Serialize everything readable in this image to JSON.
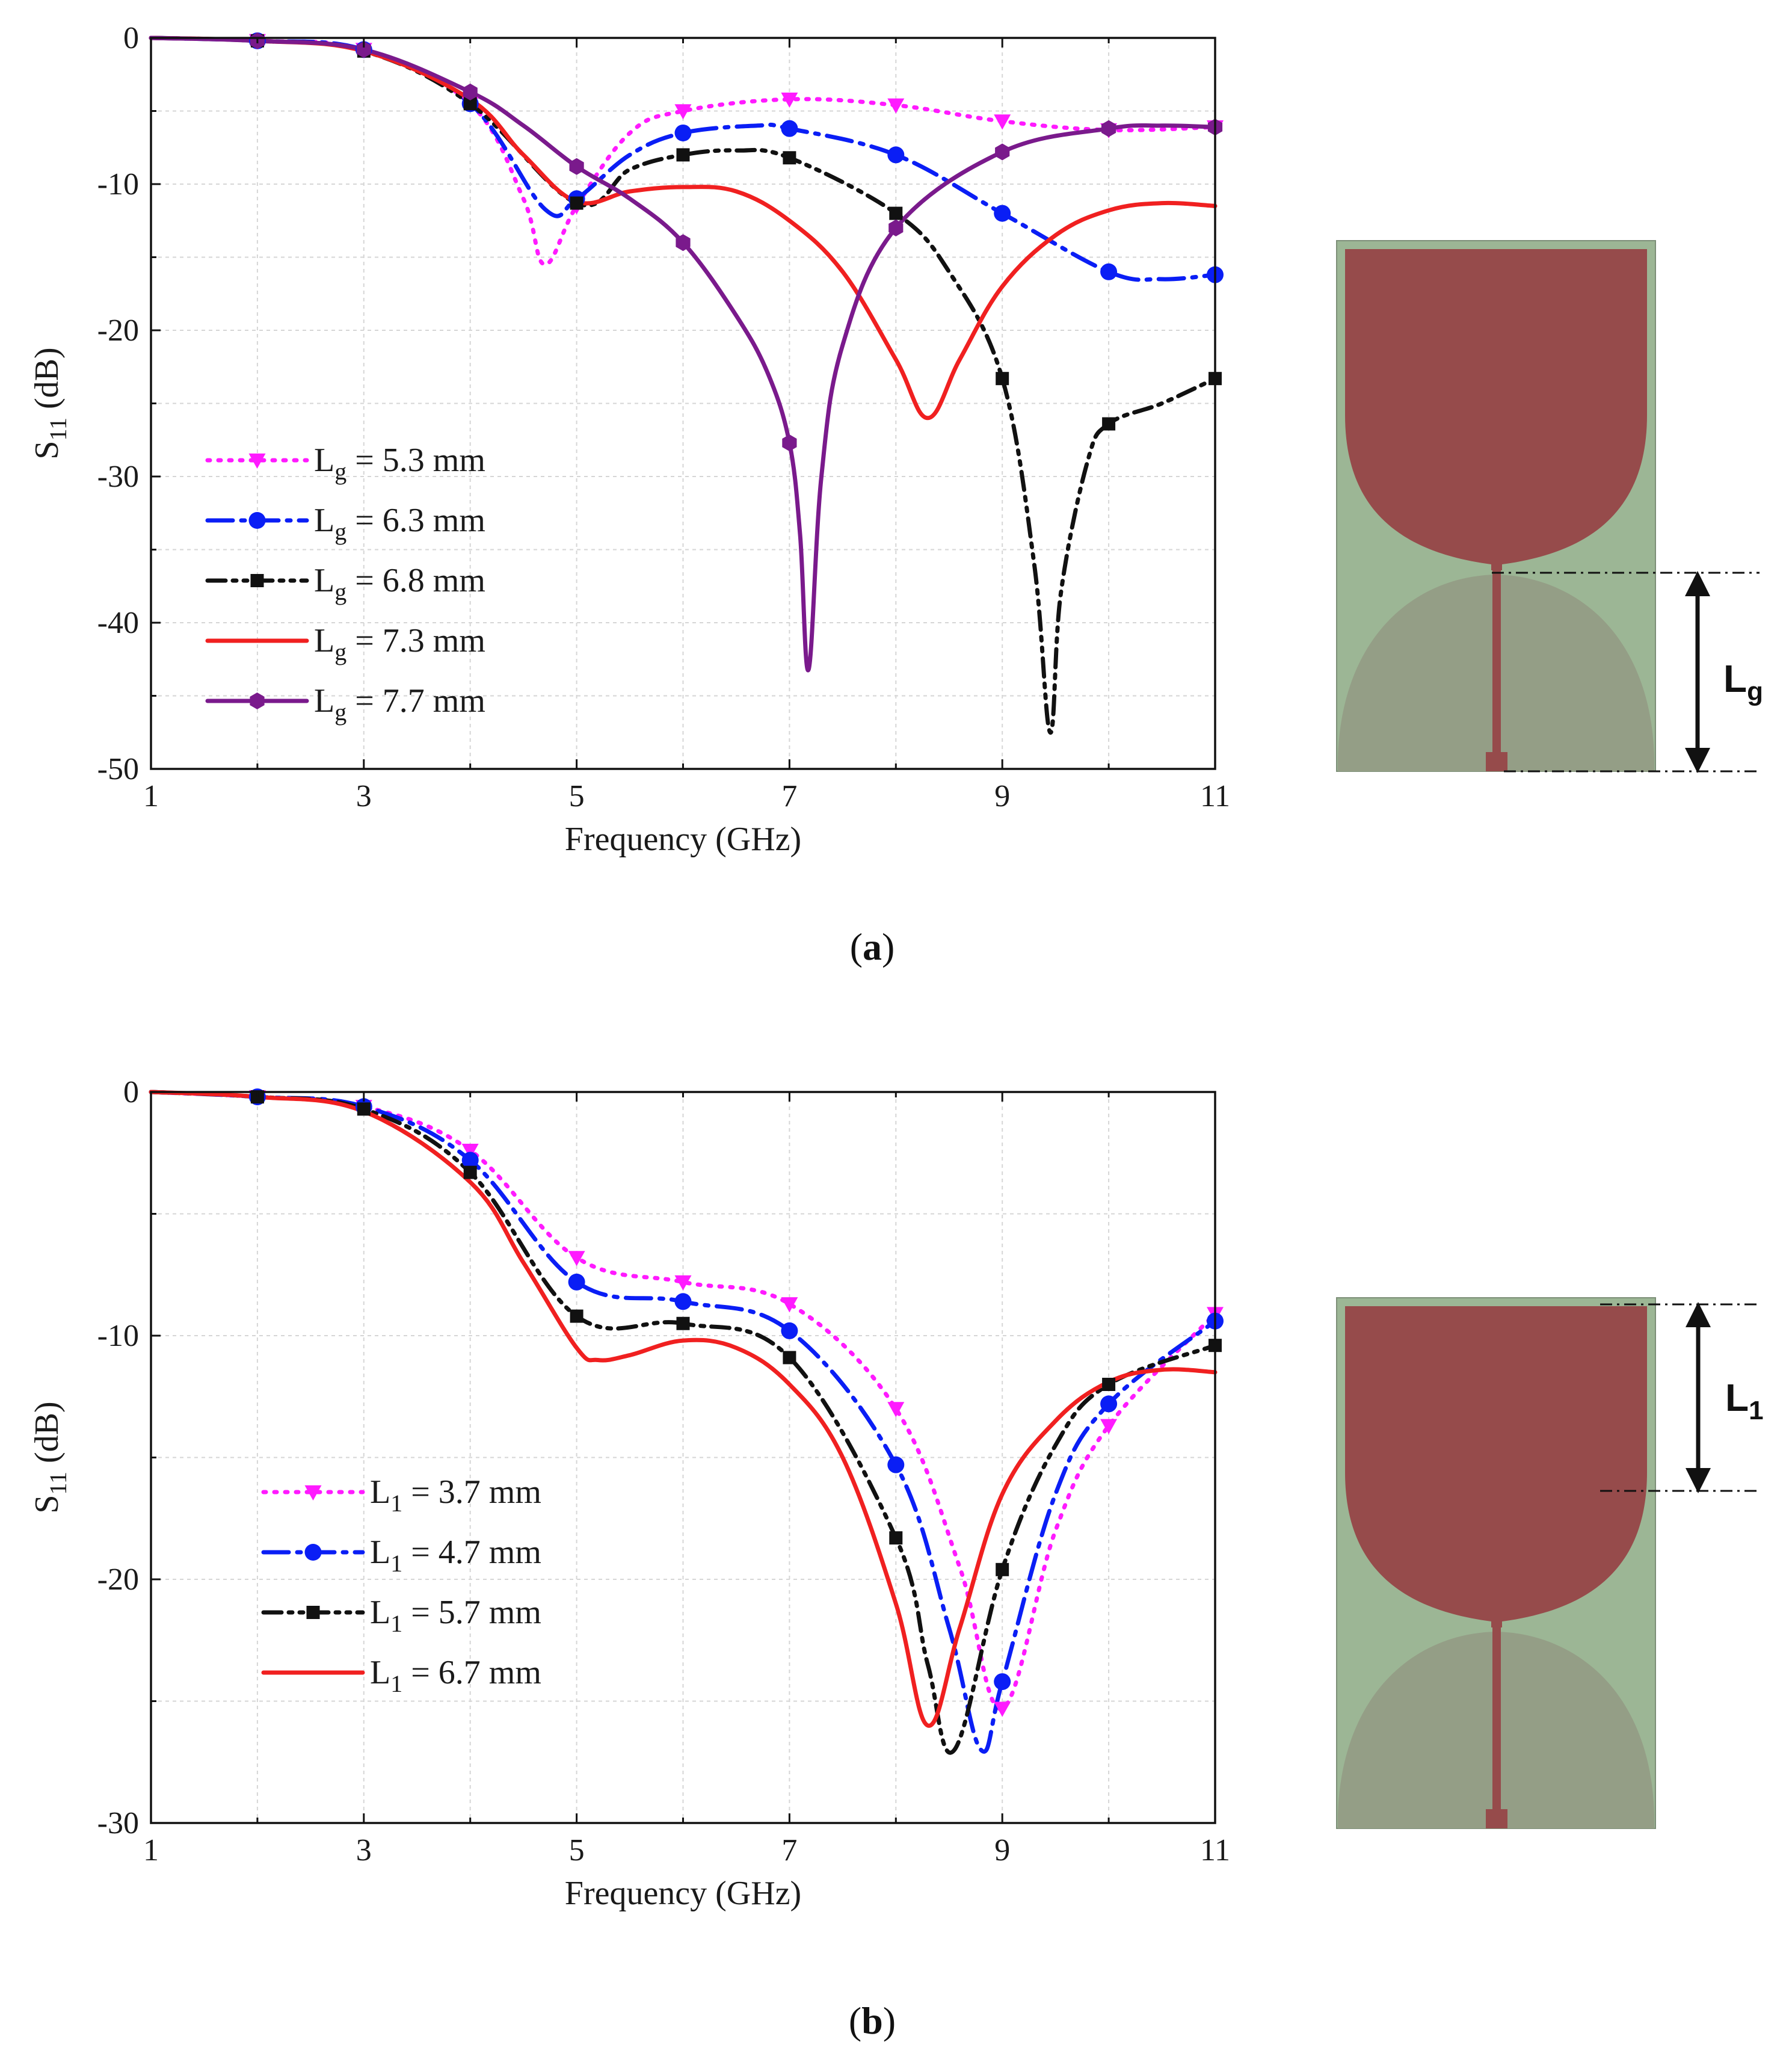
{
  "chart_data": [
    {
      "type": "line",
      "caption_label": "a",
      "xlabel": "Frequency (GHz)",
      "ylabel_main": "S",
      "ylabel_sub": "11",
      "ylabel_unit": " (dB)",
      "xlim": [
        1,
        11
      ],
      "ylim": [
        -50,
        0
      ],
      "xticks": [
        "1",
        "3",
        "5",
        "7",
        "9",
        "11"
      ],
      "yticks": [
        "0",
        "-10",
        "-20",
        "-30",
        "-40",
        "-50"
      ],
      "grid": true,
      "legend_position": "bottom-left",
      "series": [
        {
          "name_main": "L",
          "name_sub": "g",
          "name_rest": " = 5.3 mm",
          "color": "#ff1aff",
          "dash": "dot",
          "marker": "triangle-down",
          "x": [
            1,
            2,
            3,
            4,
            4.5,
            4.7,
            5,
            5.5,
            6,
            7,
            8,
            9,
            10,
            11
          ],
          "y": [
            0,
            -0.2,
            -0.8,
            -4.5,
            -11,
            -15.5,
            -11.5,
            -6.5,
            -5,
            -4.2,
            -4.6,
            -5.7,
            -6.3,
            -6.1
          ]
        },
        {
          "name_main": "L",
          "name_sub": "g",
          "name_rest": " = 6.3 mm",
          "color": "#0a1ef5",
          "dash": "dashdot",
          "marker": "circle",
          "x": [
            1,
            2,
            3,
            4,
            4.7,
            5,
            5.5,
            6,
            6.7,
            7,
            8,
            9,
            10,
            10.5,
            11
          ],
          "y": [
            0,
            -0.2,
            -0.8,
            -4.5,
            -11.7,
            -11,
            -8,
            -6.5,
            -6,
            -6.2,
            -8,
            -12,
            -16,
            -16.5,
            -16.2
          ]
        },
        {
          "name_main": "L",
          "name_sub": "g",
          "name_rest": " = 6.8 mm",
          "color": "#111111",
          "dash": "dashdotdot",
          "marker": "square",
          "x": [
            1,
            2,
            3,
            4,
            5,
            5.5,
            6,
            6.5,
            7,
            8,
            8.5,
            9,
            9.3,
            9.45,
            9.55,
            9.8,
            10,
            10.5,
            11
          ],
          "y": [
            0,
            -0.2,
            -0.9,
            -4.5,
            -11.3,
            -9,
            -8,
            -7.7,
            -8.2,
            -12,
            -16,
            -23.3,
            -36,
            -47.5,
            -38,
            -29,
            -26.4,
            -25,
            -23.3
          ]
        },
        {
          "name_main": "L",
          "name_sub": "g",
          "name_rest": " = 7.3 mm",
          "color": "#f02020",
          "dash": "solid",
          "marker": "none",
          "x": [
            1,
            2,
            3,
            4,
            4.5,
            5,
            5.5,
            6,
            6.5,
            7,
            7.5,
            8,
            8.3,
            8.6,
            9,
            9.5,
            10,
            10.5,
            11
          ],
          "y": [
            0,
            -0.2,
            -0.9,
            -4.2,
            -8,
            -11.2,
            -10.5,
            -10.2,
            -10.5,
            -12.5,
            -16,
            -22,
            -26,
            -22,
            -17,
            -13.5,
            -11.8,
            -11.3,
            -11.5
          ]
        },
        {
          "name_main": "L",
          "name_sub": "g",
          "name_rest": " = 7.7 mm",
          "color": "#7a1a8c",
          "dash": "solid",
          "marker": "hexagon",
          "x": [
            1,
            2,
            3,
            4,
            4.5,
            5,
            5.5,
            6,
            6.5,
            6.8,
            7,
            7.1,
            7.18,
            7.3,
            7.5,
            8,
            9,
            10,
            10.5,
            11
          ],
          "y": [
            0,
            -0.2,
            -0.8,
            -3.7,
            -6,
            -8.8,
            -11,
            -14,
            -19,
            -23,
            -27.7,
            -34,
            -43.2,
            -30,
            -21,
            -13,
            -7.8,
            -6.2,
            -6,
            -6.1
          ]
        }
      ]
    },
    {
      "type": "line",
      "caption_label": "b",
      "xlabel": "Frequency (GHz)",
      "ylabel_main": "S",
      "ylabel_sub": "11",
      "ylabel_unit": " (dB)",
      "xlim": [
        1,
        11
      ],
      "ylim": [
        -30,
        0
      ],
      "xticks": [
        "1",
        "3",
        "5",
        "7",
        "9",
        "11"
      ],
      "yticks": [
        "0",
        "-10",
        "-20",
        "-30"
      ],
      "grid": true,
      "legend_position": "bottom-left",
      "series": [
        {
          "name_main": "L",
          "name_sub": "1",
          "name_rest": " = 3.7 mm",
          "color": "#ff1aff",
          "dash": "dot",
          "marker": "triangle-down",
          "x": [
            1,
            2,
            3,
            4,
            5,
            6,
            7,
            8,
            8.6,
            9,
            9.5,
            10,
            11
          ],
          "y": [
            0,
            -0.2,
            -0.6,
            -2.4,
            -6.8,
            -7.8,
            -8.7,
            -13,
            -19.5,
            -25.3,
            -18,
            -13.7,
            -9.1
          ]
        },
        {
          "name_main": "L",
          "name_sub": "1",
          "name_rest": " = 4.7 mm",
          "color": "#0a1ef5",
          "dash": "dashdot",
          "marker": "circle",
          "x": [
            1,
            2,
            3,
            4,
            5,
            6,
            7,
            8,
            8.5,
            8.8,
            9,
            9.5,
            10,
            11
          ],
          "y": [
            0,
            -0.2,
            -0.6,
            -2.8,
            -7.8,
            -8.6,
            -9.8,
            -15.3,
            -22,
            -27,
            -24.2,
            -16.5,
            -12.8,
            -9.4
          ]
        },
        {
          "name_main": "L",
          "name_sub": "1",
          "name_rest": " = 5.7 mm",
          "color": "#111111",
          "dash": "dashdotdot",
          "marker": "square",
          "x": [
            1,
            2,
            3,
            4,
            5,
            6,
            7,
            8,
            8.3,
            8.55,
            9,
            9.5,
            10,
            11
          ],
          "y": [
            0,
            -0.2,
            -0.7,
            -3.3,
            -9.2,
            -9.5,
            -10.9,
            -18.3,
            -23.5,
            -27,
            -19.6,
            -14.5,
            -12,
            -10.4
          ]
        },
        {
          "name_main": "L",
          "name_sub": "1",
          "name_rest": " = 6.7 mm",
          "color": "#f02020",
          "dash": "solid",
          "marker": "none",
          "x": [
            1,
            2,
            3,
            4,
            4.5,
            5,
            5.2,
            5.5,
            6,
            6.5,
            7,
            7.5,
            8,
            8.3,
            8.6,
            9,
            9.5,
            10,
            10.5,
            11
          ],
          "y": [
            0,
            -0.2,
            -0.8,
            -3.7,
            -7,
            -10.5,
            -11,
            -10.8,
            -10.2,
            -10.5,
            -12,
            -15,
            -21,
            -26,
            -22,
            -16.5,
            -13.5,
            -11.9,
            -11.4,
            -11.5
          ]
        }
      ]
    }
  ],
  "antenna_labels": {
    "a": {
      "main": "L",
      "sub": "g"
    },
    "b": {
      "main": "L",
      "sub": "1"
    }
  },
  "colors": {
    "substrate": "#9cb695",
    "patch": "#964b4b",
    "ground": "#949e86",
    "grid": "#d9d9d9"
  }
}
